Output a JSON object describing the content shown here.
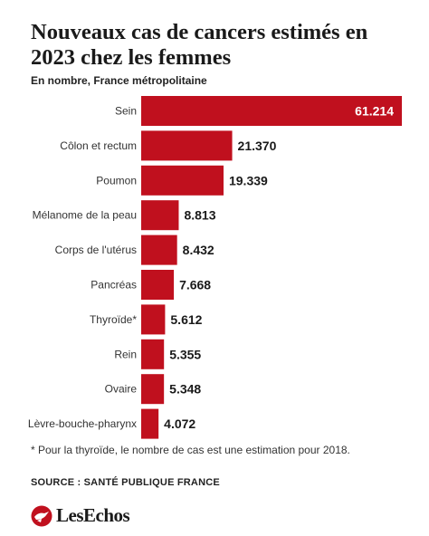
{
  "colors": {
    "bar": "#c0101e",
    "inside_label": "#ffffff",
    "outside_label": "#1a1a1a"
  },
  "chart_data": {
    "type": "bar",
    "orientation": "horizontal",
    "title": "Nouveaux cas de cancers estimés en 2023 chez les femmes",
    "subtitle": "En nombre, France métropolitaine",
    "categories": [
      "Sein",
      "Côlon et rectum",
      "Poumon",
      "Mélanome de la peau",
      "Corps de l'utérus",
      "Pancréas",
      "Thyroïde*",
      "Rein",
      "Ovaire",
      "Lèvre-bouche-pharynx"
    ],
    "values": [
      61214,
      21370,
      19339,
      8813,
      8432,
      7668,
      5612,
      5355,
      5348,
      4072
    ],
    "value_labels": [
      "61.214",
      "21.370",
      "19.339",
      "8.813",
      "8.432",
      "7.668",
      "5.612",
      "5.355",
      "5.348",
      "4.072"
    ],
    "xlim": [
      0,
      61214
    ],
    "grid": false,
    "legend": "none"
  },
  "footnote": "* Pour la thyroïde, le nombre de cas est une estimation pour 2018.",
  "source": "SOURCE : SANTÉ PUBLIQUE FRANCE",
  "brand": {
    "name": "LesEchos",
    "logo_icon": "les-echos-bird-icon"
  }
}
